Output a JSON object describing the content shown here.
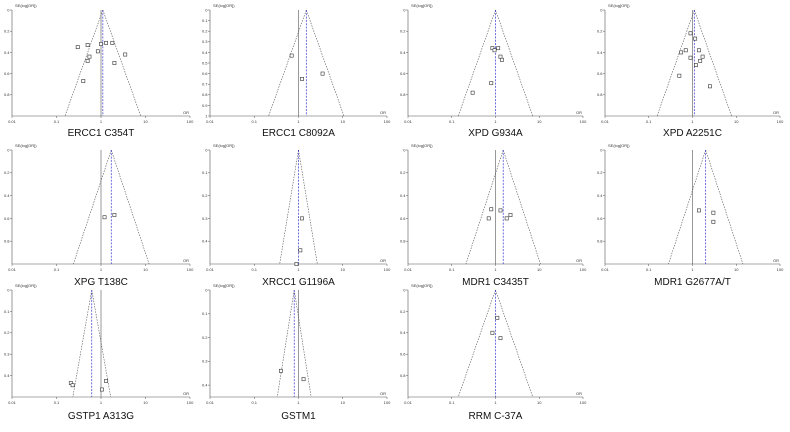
{
  "figure": {
    "colors": {
      "axis": "#555555",
      "funnel": "#555555",
      "ref_line": "#3333cc",
      "marker": "#333333"
    }
  },
  "chart_data": [
    {
      "type": "scatter",
      "label": "ERCC1 C354T",
      "ylabel": "SE(log[OR])",
      "xlabel": "OR",
      "x_scale": "log",
      "xlim": [
        0.01,
        100
      ],
      "x_ticks": [
        "0.01",
        "0.1",
        "1",
        "10",
        "100"
      ],
      "ylim": [
        0,
        1
      ],
      "y_ticks": [
        "0",
        "0.2",
        "0.4",
        "0.6",
        "0.8"
      ],
      "pooled_or": 1.1,
      "points": [
        {
          "x": 0.3,
          "y": 0.35
        },
        {
          "x": 0.5,
          "y": 0.33
        },
        {
          "x": 0.85,
          "y": 0.39
        },
        {
          "x": 1.0,
          "y": 0.32
        },
        {
          "x": 1.3,
          "y": 0.31
        },
        {
          "x": 1.8,
          "y": 0.31
        },
        {
          "x": 3.5,
          "y": 0.42
        },
        {
          "x": 2.0,
          "y": 0.5
        },
        {
          "x": 0.55,
          "y": 0.44
        },
        {
          "x": 0.5,
          "y": 0.48
        },
        {
          "x": 0.4,
          "y": 0.67
        }
      ]
    },
    {
      "type": "scatter",
      "label": "ERCC1 C8092A",
      "ylabel": "SE(log[OR])",
      "xlabel": "OR",
      "x_scale": "log",
      "xlim": [
        0.01,
        100
      ],
      "x_ticks": [
        "0.01",
        "0.1",
        "1",
        "10",
        "100"
      ],
      "ylim": [
        0,
        1
      ],
      "y_ticks": [
        "0",
        "0.1",
        "0.2",
        "0.3",
        "0.4",
        "0.5",
        "0.6",
        "0.7",
        "0.8",
        "0.9",
        "1"
      ],
      "pooled_or": 1.5,
      "points": [
        {
          "x": 0.7,
          "y": 0.43
        },
        {
          "x": 1.2,
          "y": 0.65
        },
        {
          "x": 3.5,
          "y": 0.6
        }
      ]
    },
    {
      "type": "scatter",
      "label": "XPD G934A",
      "ylabel": "SE(log[OR])",
      "xlabel": "OR",
      "x_scale": "log",
      "xlim": [
        0.01,
        100
      ],
      "x_ticks": [
        "0.01",
        "0.1",
        "1",
        "10",
        "100"
      ],
      "ylim": [
        0,
        1
      ],
      "y_ticks": [
        "0",
        "0.2",
        "0.4",
        "0.6",
        "0.8"
      ],
      "pooled_or": 1.0,
      "points": [
        {
          "x": 0.85,
          "y": 0.36
        },
        {
          "x": 0.95,
          "y": 0.38
        },
        {
          "x": 1.15,
          "y": 0.36
        },
        {
          "x": 1.3,
          "y": 0.44
        },
        {
          "x": 1.4,
          "y": 0.47
        },
        {
          "x": 0.8,
          "y": 0.69
        },
        {
          "x": 0.3,
          "y": 0.78
        }
      ]
    },
    {
      "type": "scatter",
      "label": "XPD A2251C",
      "ylabel": "SE(log[OR])",
      "xlabel": "OR",
      "x_scale": "log",
      "xlim": [
        0.01,
        100
      ],
      "x_ticks": [
        "0.01",
        "0.1",
        "1",
        "10",
        "100"
      ],
      "ylim": [
        0,
        1
      ],
      "y_ticks": [
        "0",
        "0.2",
        "0.4",
        "0.6",
        "0.8"
      ],
      "pooled_or": 1.1,
      "points": [
        {
          "x": 0.9,
          "y": 0.22
        },
        {
          "x": 1.15,
          "y": 0.27
        },
        {
          "x": 0.7,
          "y": 0.38
        },
        {
          "x": 0.55,
          "y": 0.4
        },
        {
          "x": 1.4,
          "y": 0.38
        },
        {
          "x": 1.7,
          "y": 0.44
        },
        {
          "x": 0.9,
          "y": 0.45
        },
        {
          "x": 1.2,
          "y": 0.52
        },
        {
          "x": 1.5,
          "y": 0.48
        },
        {
          "x": 0.5,
          "y": 0.62
        },
        {
          "x": 2.5,
          "y": 0.72
        }
      ]
    },
    {
      "type": "scatter",
      "label": "XPG T138C",
      "ylabel": "SE(log[OR])",
      "xlabel": "OR",
      "x_scale": "log",
      "xlim": [
        0.01,
        100
      ],
      "x_ticks": [
        "0.01",
        "0.1",
        "1",
        "10",
        "100"
      ],
      "ylim": [
        0,
        1
      ],
      "y_ticks": [
        "0",
        "0.2",
        "0.4",
        "0.6",
        "0.8"
      ],
      "pooled_or": 1.7,
      "points": [
        {
          "x": 1.2,
          "y": 0.59
        },
        {
          "x": 2.0,
          "y": 0.57
        }
      ]
    },
    {
      "type": "scatter",
      "label": "XRCC1 G1196A",
      "ylabel": "SE(log[OR])",
      "xlabel": "OR",
      "x_scale": "log",
      "xlim": [
        0.01,
        100
      ],
      "x_ticks": [
        "0.01",
        "0.1",
        "1",
        "10",
        "100"
      ],
      "ylim": [
        0,
        0.5
      ],
      "y_ticks": [
        "0",
        "0.1",
        "0.2",
        "0.3",
        "0.4"
      ],
      "pooled_or": 1.0,
      "points": [
        {
          "x": 1.2,
          "y": 0.3
        },
        {
          "x": 1.1,
          "y": 0.44
        },
        {
          "x": 0.9,
          "y": 0.5
        }
      ]
    },
    {
      "type": "scatter",
      "label": "MDR1 C3435T",
      "ylabel": "SE(log[OR])",
      "xlabel": "OR",
      "x_scale": "log",
      "xlim": [
        0.01,
        100
      ],
      "x_ticks": [
        "0.01",
        "0.1",
        "1",
        "10",
        "100"
      ],
      "ylim": [
        0,
        1
      ],
      "y_ticks": [
        "0",
        "0.2",
        "0.4",
        "0.6",
        "0.8"
      ],
      "pooled_or": 1.5,
      "points": [
        {
          "x": 0.8,
          "y": 0.52
        },
        {
          "x": 1.3,
          "y": 0.53
        },
        {
          "x": 2.2,
          "y": 0.57
        },
        {
          "x": 0.7,
          "y": 0.6
        },
        {
          "x": 1.8,
          "y": 0.6
        }
      ]
    },
    {
      "type": "scatter",
      "label": "MDR1 G2677A/T",
      "ylabel": "SE(log[OR])",
      "xlabel": "OR",
      "x_scale": "log",
      "xlim": [
        0.01,
        100
      ],
      "x_ticks": [
        "0.01",
        "0.1",
        "1",
        "10",
        "100"
      ],
      "ylim": [
        0,
        1
      ],
      "y_ticks": [
        "0",
        "0.2",
        "0.4",
        "0.6",
        "0.8"
      ],
      "pooled_or": 2.0,
      "points": [
        {
          "x": 1.4,
          "y": 0.53
        },
        {
          "x": 3.0,
          "y": 0.55
        },
        {
          "x": 3.0,
          "y": 0.63
        }
      ]
    },
    {
      "type": "scatter",
      "label": "GSTP1 A313G",
      "ylabel": "SE(log[OR])",
      "xlabel": "OR",
      "x_scale": "log",
      "xlim": [
        0.01,
        100
      ],
      "x_ticks": [
        "0.01",
        "0.1",
        "1",
        "10",
        "100"
      ],
      "ylim": [
        0,
        0.5
      ],
      "y_ticks": [
        "0",
        "0.1",
        "0.2",
        "0.3",
        "0.4"
      ],
      "pooled_or": 0.62,
      "points": [
        {
          "x": 0.21,
          "y": 0.435
        },
        {
          "x": 0.23,
          "y": 0.445
        },
        {
          "x": 1.3,
          "y": 0.425
        },
        {
          "x": 1.05,
          "y": 0.465
        }
      ]
    },
    {
      "type": "scatter",
      "label": "GSTM1",
      "ylabel": "SE(log[OR])",
      "xlabel": "OR",
      "x_scale": "log",
      "xlim": [
        0.01,
        100
      ],
      "x_ticks": [
        "0.01",
        "0.1",
        "1",
        "10",
        "100"
      ],
      "ylim": [
        0,
        0.45
      ],
      "y_ticks": [
        "0",
        "0.1",
        "0.2",
        "0.3",
        "0.4"
      ],
      "pooled_or": 0.8,
      "points": [
        {
          "x": 0.4,
          "y": 0.34
        },
        {
          "x": 1.3,
          "y": 0.375
        }
      ]
    },
    {
      "type": "scatter",
      "label": "RRM C-37A",
      "ylabel": "SE(log[OR])",
      "xlabel": "OR",
      "x_scale": "log",
      "xlim": [
        0.01,
        100
      ],
      "x_ticks": [
        "0.01",
        "0.1",
        "1",
        "10",
        "100"
      ],
      "ylim": [
        0,
        1
      ],
      "y_ticks": [
        "0",
        "0.2",
        "0.4",
        "0.6",
        "0.8"
      ],
      "pooled_or": 1.0,
      "points": [
        {
          "x": 1.1,
          "y": 0.26
        },
        {
          "x": 0.85,
          "y": 0.4
        },
        {
          "x": 1.3,
          "y": 0.45
        }
      ]
    }
  ]
}
